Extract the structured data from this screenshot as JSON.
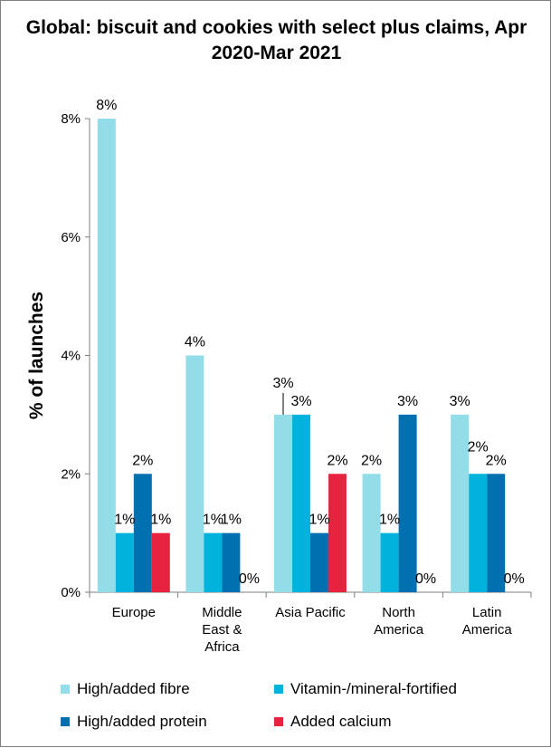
{
  "chart_data": {
    "type": "bar",
    "title": "Global: biscuit and cookies with select plus claims, Apr 2020-Mar 2021",
    "ylabel": "% of launches",
    "xlabel": "",
    "ylim": [
      0,
      8
    ],
    "yticks": [
      "0%",
      "2%",
      "4%",
      "6%",
      "8%"
    ],
    "categories": [
      [
        "Europe"
      ],
      [
        "Middle",
        "East &",
        "Africa"
      ],
      [
        "Asia Pacific"
      ],
      [
        "North",
        "America"
      ],
      [
        "Latin",
        "America"
      ]
    ],
    "series": [
      {
        "name": "High/added fibre",
        "color": "#93dde9",
        "values": [
          8,
          4,
          3,
          2,
          3
        ],
        "labels": [
          "8%",
          "4%",
          "3%",
          "2%",
          "3%"
        ]
      },
      {
        "name": "Vitamin-/mineral-fortified",
        "color": "#00b3dd",
        "values": [
          1,
          1,
          3,
          1,
          2
        ],
        "labels": [
          "1%",
          "1%",
          "3%",
          "1%",
          "2%"
        ]
      },
      {
        "name": "High/added protein",
        "color": "#0070b0",
        "values": [
          2,
          1,
          1,
          3,
          2
        ],
        "labels": [
          "2%",
          "1%",
          "1%",
          "3%",
          "2%"
        ]
      },
      {
        "name": "Added calcium",
        "color": "#e8233f",
        "values": [
          1,
          0,
          2,
          0,
          0
        ],
        "labels": [
          "1%",
          "0%",
          "2%",
          "0%",
          "0%"
        ]
      }
    ],
    "legend_position": "bottom",
    "grid": false
  }
}
